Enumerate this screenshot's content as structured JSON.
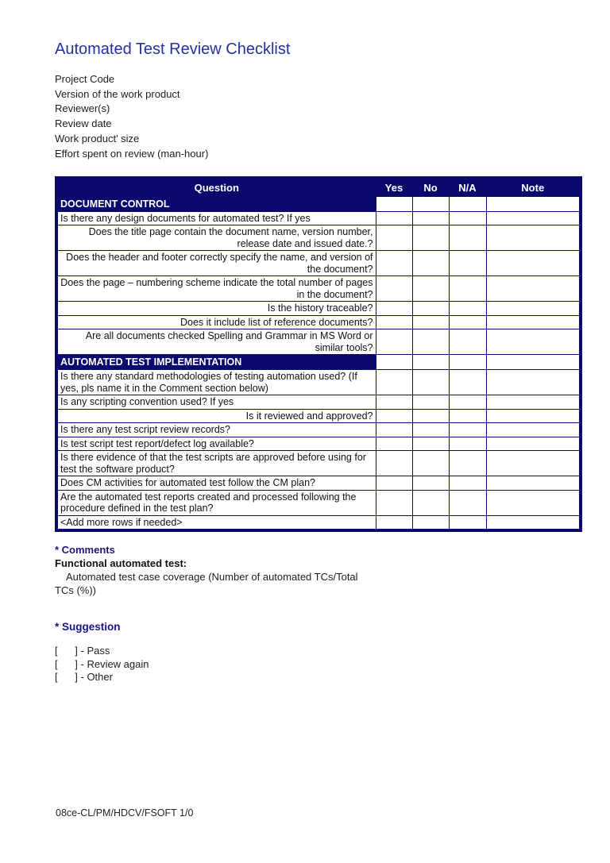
{
  "document": {
    "title": "Automated Test Review Checklist",
    "meta_fields": [
      "Project Code",
      "Version of the work product",
      "Reviewer(s)",
      "Review date",
      "Work product' size",
      "Effort spent on review (man-hour)"
    ],
    "footer": "08ce-CL/PM/HDCV/FSOFT 1/0"
  },
  "table": {
    "headers": [
      "Question",
      "Yes",
      "No",
      "N/A",
      "Note"
    ],
    "answer_columns": [
      "yes",
      "no",
      "na",
      "note"
    ],
    "rows": [
      {
        "type": "section",
        "align": "left",
        "text": "DOCUMENT CONTROL"
      },
      {
        "type": "question",
        "align": "left",
        "text": "Is there any design documents for automated test? If yes"
      },
      {
        "type": "question",
        "align": "right",
        "text": "Does the title page contain the document name, version number, release date and issued date.?"
      },
      {
        "type": "question",
        "align": "right",
        "text": "Does the header and footer correctly specify the name, and version of the document?"
      },
      {
        "type": "question",
        "align": "right",
        "text": "Does the page – numbering scheme indicate the total number of pages in the document?"
      },
      {
        "type": "question",
        "align": "right",
        "text": "Is the history traceable?"
      },
      {
        "type": "question",
        "align": "right",
        "text": "Does it include list of reference documents?"
      },
      {
        "type": "question",
        "align": "right",
        "text": "Are all documents checked Spelling and Grammar in MS Word or similar tools?"
      },
      {
        "type": "section",
        "align": "left",
        "text": "AUTOMATED TEST IMPLEMENTATION"
      },
      {
        "type": "question",
        "align": "left",
        "text": "Is there any standard methodologies of testing automation used? (If yes, pls name it in the Comment section below)"
      },
      {
        "type": "question",
        "align": "left",
        "text": "Is any scripting convention used? If yes"
      },
      {
        "type": "question",
        "align": "right",
        "text": "Is it reviewed and approved?"
      },
      {
        "type": "question",
        "align": "left",
        "text": "Is there any test script review records?"
      },
      {
        "type": "question",
        "align": "left",
        "text": "Is test script test report/defect log available?"
      },
      {
        "type": "question",
        "align": "left",
        "text": "Is there evidence of that the test scripts are approved before using for test the software product?"
      },
      {
        "type": "question",
        "align": "left",
        "text": "Does CM activities for automated test follow the CM plan?"
      },
      {
        "type": "question",
        "align": "left",
        "text": "Are the automated test reports created and processed following the procedure defined in the test plan?"
      },
      {
        "type": "question",
        "align": "left",
        "text": "<Add more rows if needed>"
      }
    ]
  },
  "comments": {
    "heading": "* Comments",
    "subheading": "Functional automated test:",
    "body": "Automated test case coverage (Number of automated TCs/Total TCs (%))"
  },
  "suggestion": {
    "heading": "* Suggestion",
    "options": [
      "[      ] - Pass",
      "[      ] - Review again",
      "[      ] - Other"
    ]
  },
  "colors": {
    "table_navy": "#0a0a6e",
    "title_blue": "#2230a2",
    "heading_blue": "#17177c",
    "body_text": "#1a1a1a",
    "table_header_text": "#ffffff",
    "page_background": "#ffffff"
  }
}
